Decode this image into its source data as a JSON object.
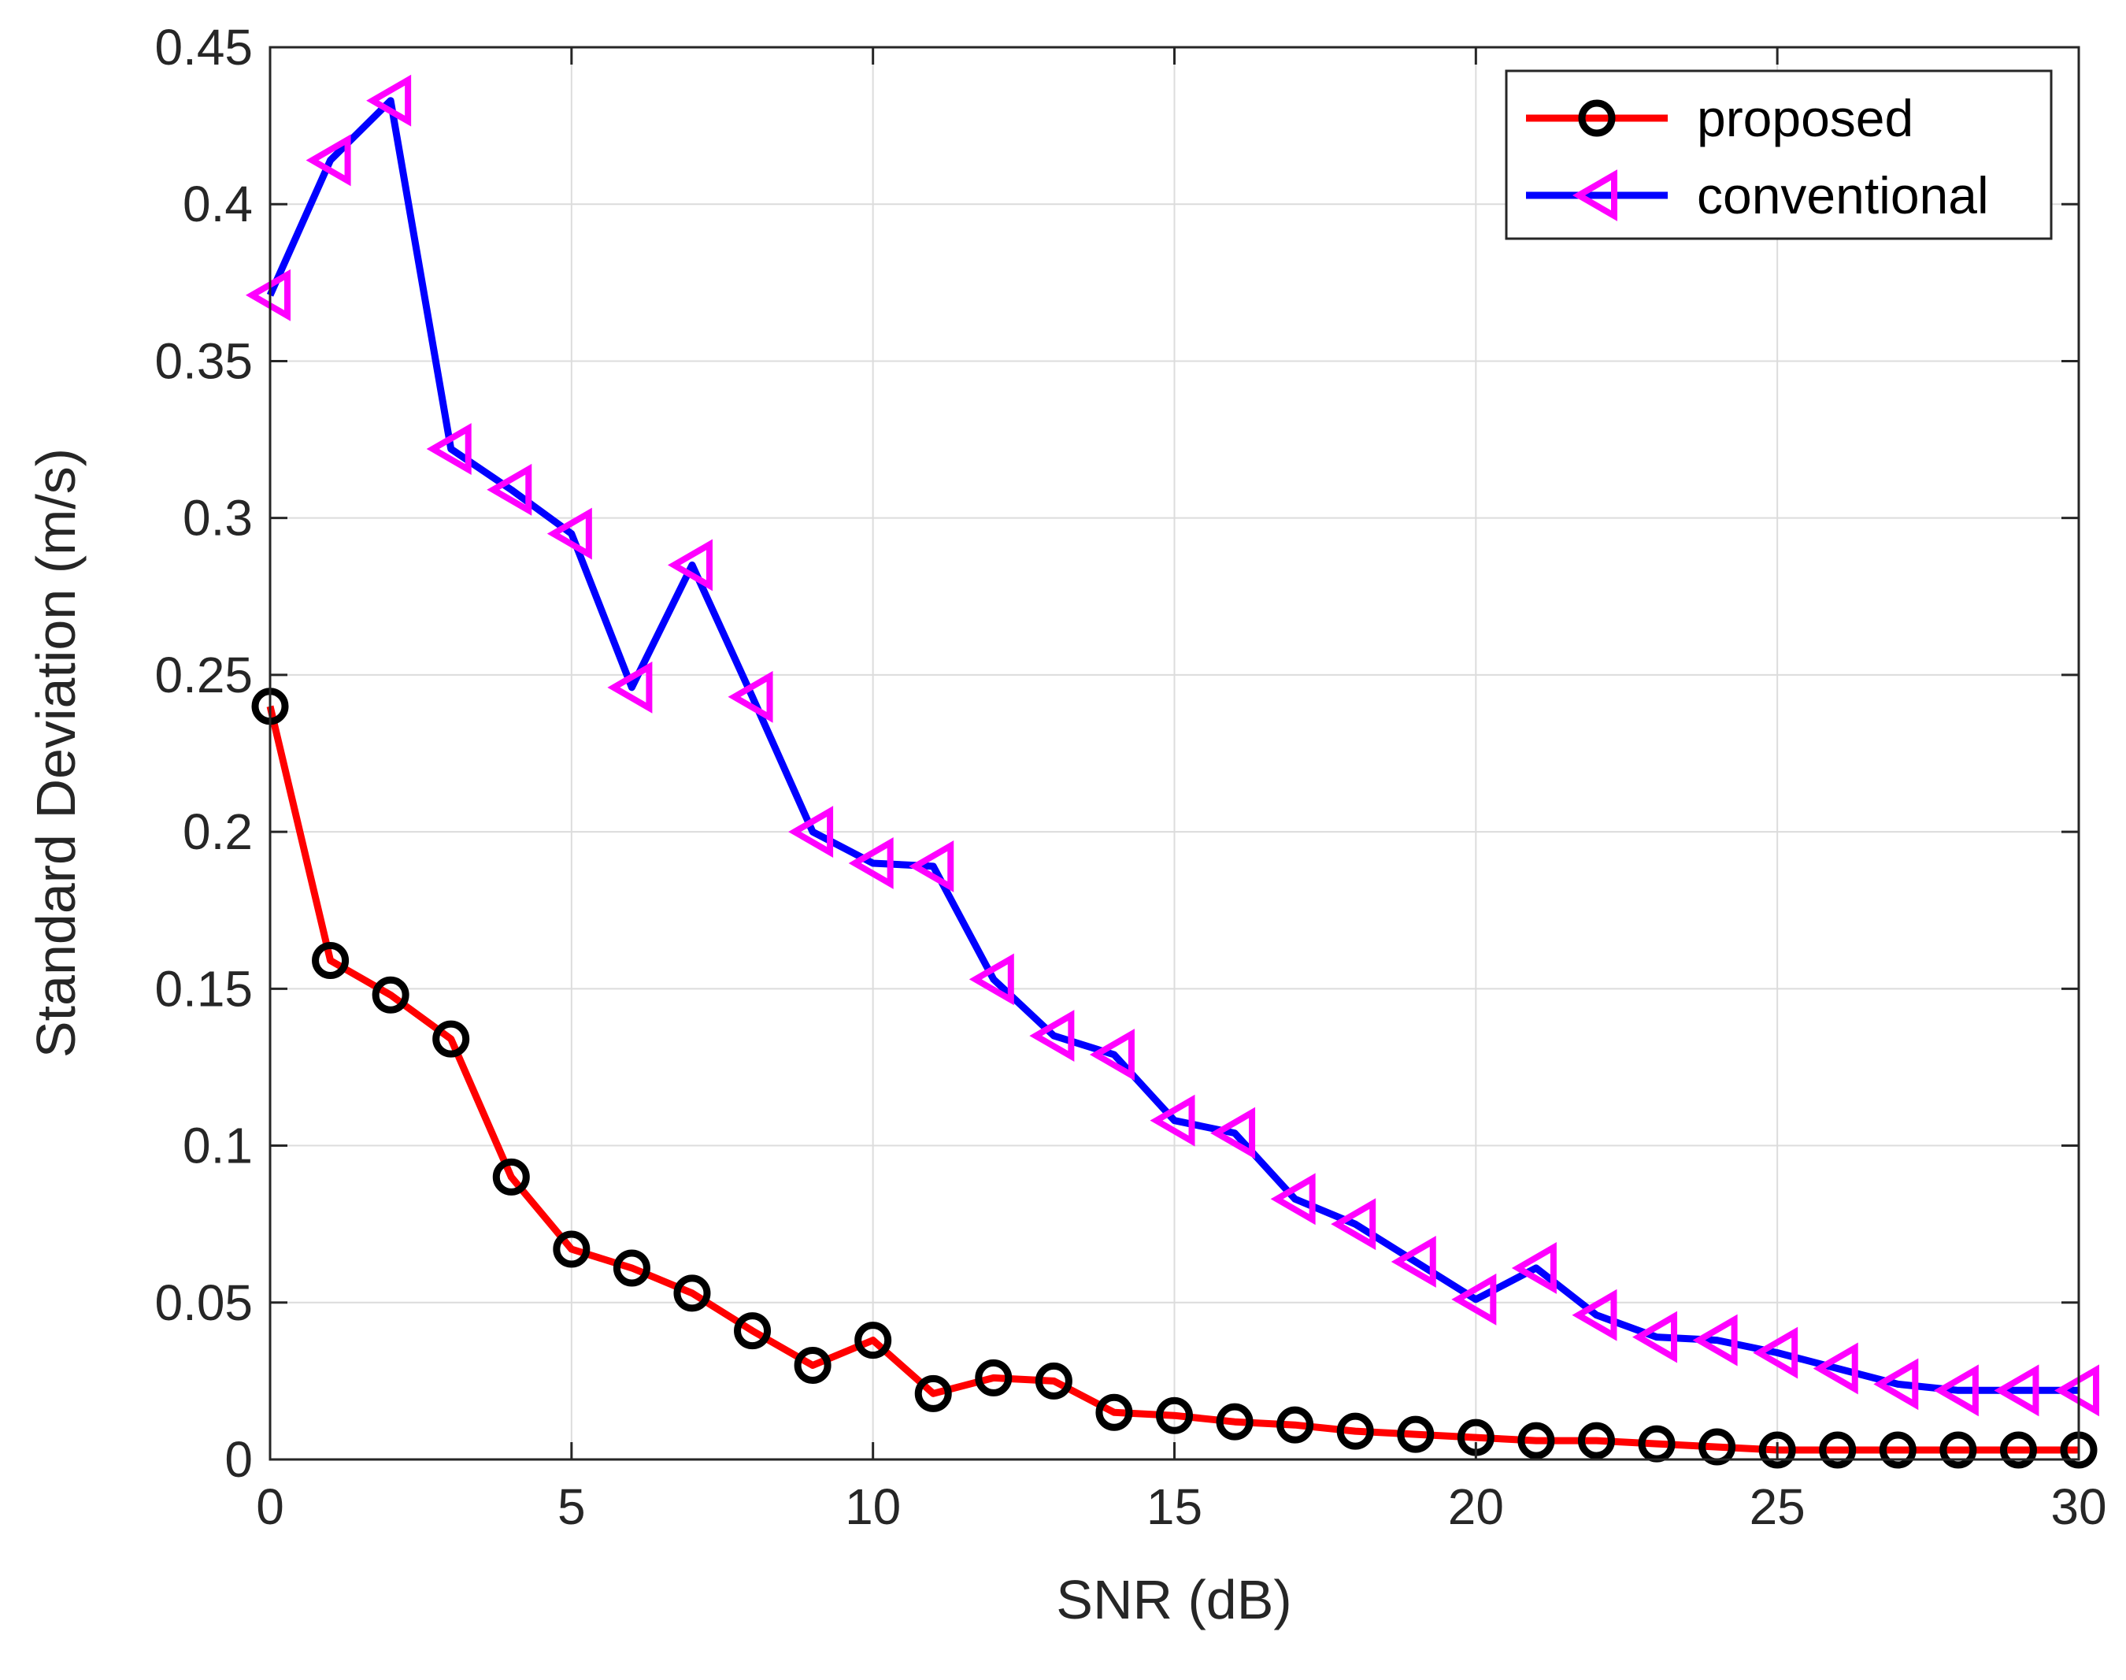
{
  "chart_data": {
    "type": "line",
    "title": "",
    "xlabel": "SNR (dB)",
    "ylabel": "Standard Deviation (m/s)",
    "xlim": [
      0,
      30
    ],
    "ylim": [
      0,
      0.45
    ],
    "xticks": [
      0,
      5,
      10,
      15,
      20,
      25,
      30
    ],
    "xtick_labels": [
      "0",
      "5",
      "10",
      "15",
      "20",
      "25",
      "30"
    ],
    "yticks": [
      0,
      0.05,
      0.1,
      0.15,
      0.2,
      0.25,
      0.3,
      0.35,
      0.4,
      0.45
    ],
    "ytick_labels": [
      "0",
      "0.05",
      "0.1",
      "0.15",
      "0.2",
      "0.25",
      "0.3",
      "0.35",
      "0.4",
      "0.45"
    ],
    "grid": true,
    "legend_position": "top-right",
    "x": [
      0,
      1,
      2,
      3,
      4,
      5,
      6,
      7,
      8,
      9,
      10,
      11,
      12,
      13,
      14,
      15,
      16,
      17,
      18,
      19,
      20,
      21,
      22,
      23,
      24,
      25,
      26,
      27,
      28,
      29,
      30
    ],
    "series": [
      {
        "name": "proposed",
        "line_color": "#ff0000",
        "marker": "circle",
        "marker_color": "#000000",
        "values": [
          0.24,
          0.159,
          0.148,
          0.134,
          0.09,
          0.067,
          0.061,
          0.053,
          0.041,
          0.03,
          0.038,
          0.021,
          0.026,
          0.025,
          0.015,
          0.014,
          0.012,
          0.011,
          0.009,
          0.008,
          0.007,
          0.006,
          0.006,
          0.005,
          0.004,
          0.003,
          0.003,
          0.003,
          0.003,
          0.003,
          0.003
        ]
      },
      {
        "name": "conventional",
        "line_color": "#0000ff",
        "marker": "triangle-left",
        "marker_color": "#ff00ff",
        "values": [
          0.371,
          0.414,
          0.433,
          0.322,
          0.309,
          0.295,
          0.246,
          0.285,
          0.243,
          0.2,
          0.19,
          0.189,
          0.153,
          0.135,
          0.129,
          0.108,
          0.104,
          0.083,
          0.075,
          0.063,
          0.051,
          0.061,
          0.046,
          0.039,
          0.038,
          0.034,
          0.029,
          0.024,
          0.022,
          0.022,
          0.022
        ]
      }
    ]
  }
}
